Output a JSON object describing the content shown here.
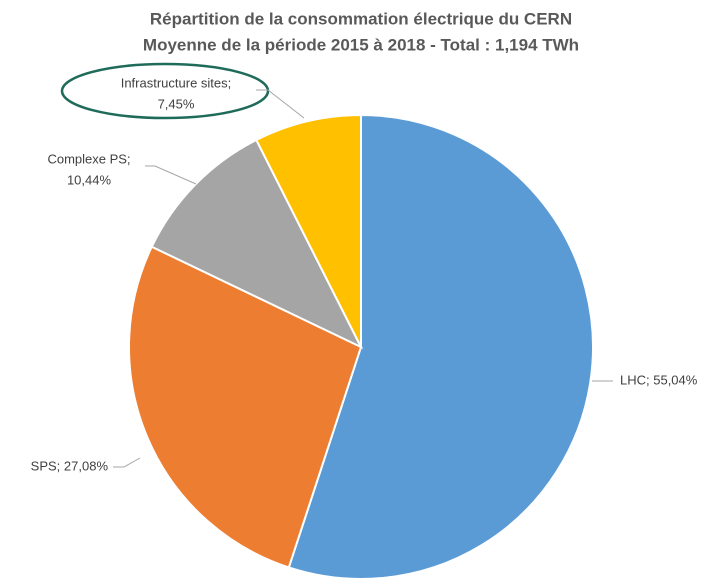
{
  "chart_data": {
    "type": "pie",
    "title": "Répartition de la consommation électrique du CERN",
    "subtitle": "Moyenne de la période 2015 à 2018 - Total : 1,194 TWh",
    "categories": [
      "LHC",
      "SPS",
      "Complexe PS",
      "Infrastructure sites"
    ],
    "values": [
      55.04,
      27.08,
      10.44,
      7.45
    ],
    "value_labels": [
      [
        "LHC; 55,04%"
      ],
      [
        "SPS; 27,08%"
      ],
      [
        "Complexe PS;",
        "10,44%"
      ],
      [
        "Infrastructure sites;",
        "7,45%"
      ]
    ],
    "colors": [
      "#5b9bd5",
      "#ed7d31",
      "#a5a5a5",
      "#ffc000"
    ]
  }
}
